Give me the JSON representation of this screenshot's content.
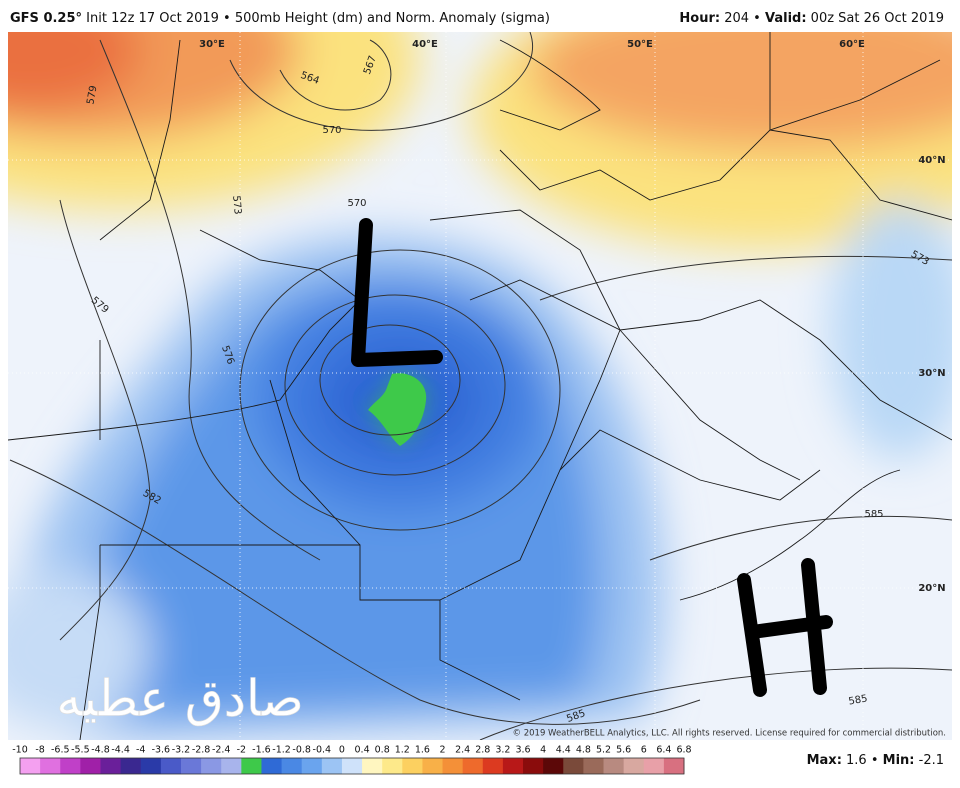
{
  "header": {
    "model": "GFS 0.25°",
    "run": " Init 12z 17 Oct 2019 • 500mb Height (dm) and Norm. Anomaly (sigma)",
    "hour_label": "Hour:",
    "hour": " 204 • ",
    "valid_label": "Valid:",
    "valid": " 00z Sat 26 Oct 2019"
  },
  "map": {
    "grid_labels": [
      "30°E",
      "40°E",
      "50°E",
      "60°E",
      "40°N",
      "30°N",
      "20°N"
    ],
    "contour_labels": [
      "564",
      "567",
      "570",
      "570",
      "573",
      "573",
      "576",
      "579",
      "579",
      "582",
      "585",
      "585",
      "585"
    ],
    "annotations": [
      "L",
      "H"
    ],
    "watermark": "صادق عطيه",
    "copyright": "© 2019 WeatherBELL Analytics, LLC. All rights reserved. License required for commercial distribution."
  },
  "colorbar": {
    "ticks": [
      "-10",
      "-8",
      "-6.5",
      "-5.5",
      "-4.8",
      "-4.4",
      "-4",
      "-3.6",
      "-3.2",
      "-2.8",
      "-2.4",
      "-2",
      "-1.6",
      "-1.2",
      "-0.8",
      "-0.4",
      "0",
      "0.4",
      "0.8",
      "1.2",
      "1.6",
      "2",
      "2.4",
      "2.8",
      "3.2",
      "3.6",
      "4",
      "4.4",
      "4.8",
      "5.2",
      "5.6",
      "6",
      "6.4",
      "6.8"
    ]
  },
  "footer": {
    "max_label": "Max:",
    "max": " 1.6 • ",
    "min_label": "Min:",
    "min": " -2.1"
  }
}
